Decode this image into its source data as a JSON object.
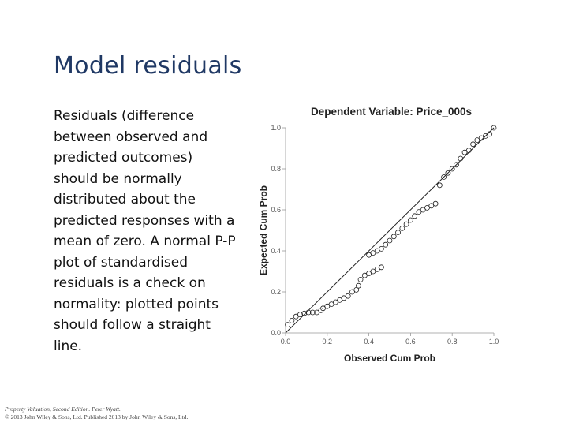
{
  "slide": {
    "title": "Model residuals",
    "body": "Residuals (difference between observed and predicted outcomes) should be normally distributed about the predicted responses with a mean of zero.  A normal P-P plot of standardised residuals is a check on normality: plotted points should follow a straight line."
  },
  "footer": {
    "line1": "Property Valuation, Second Edition. Peter Wyatt.",
    "line2": "© 2013 John Wiley & Sons, Ltd. Published 2013 by John Wiley & Sons, Ltd."
  },
  "chart_data": {
    "type": "scatter",
    "title": "Dependent Variable: Price_000s",
    "xlabel": "Observed Cum Prob",
    "ylabel": "Expected Cum Prob",
    "xlim": [
      0,
      1
    ],
    "ylim": [
      0,
      1
    ],
    "xticks": [
      "0.0",
      "0.2",
      "0.4",
      "0.6",
      "0.8",
      "1.0"
    ],
    "yticks": [
      "0.0",
      "0.2",
      "0.4",
      "0.6",
      "0.8",
      "1.0"
    ],
    "grid": false,
    "legend": "none",
    "reference_line": [
      [
        0,
        0
      ],
      [
        1,
        1
      ]
    ],
    "points": [
      [
        0.01,
        0.04
      ],
      [
        0.03,
        0.06
      ],
      [
        0.05,
        0.08
      ],
      [
        0.07,
        0.09
      ],
      [
        0.09,
        0.095
      ],
      [
        0.11,
        0.1
      ],
      [
        0.13,
        0.1
      ],
      [
        0.15,
        0.1
      ],
      [
        0.17,
        0.11
      ],
      [
        0.18,
        0.12
      ],
      [
        0.2,
        0.13
      ],
      [
        0.22,
        0.14
      ],
      [
        0.24,
        0.15
      ],
      [
        0.26,
        0.16
      ],
      [
        0.28,
        0.17
      ],
      [
        0.3,
        0.18
      ],
      [
        0.32,
        0.2
      ],
      [
        0.34,
        0.21
      ],
      [
        0.35,
        0.23
      ],
      [
        0.36,
        0.26
      ],
      [
        0.38,
        0.28
      ],
      [
        0.4,
        0.29
      ],
      [
        0.42,
        0.3
      ],
      [
        0.44,
        0.31
      ],
      [
        0.46,
        0.32
      ],
      [
        0.4,
        0.38
      ],
      [
        0.42,
        0.39
      ],
      [
        0.44,
        0.4
      ],
      [
        0.46,
        0.41
      ],
      [
        0.48,
        0.43
      ],
      [
        0.5,
        0.45
      ],
      [
        0.52,
        0.47
      ],
      [
        0.54,
        0.49
      ],
      [
        0.56,
        0.51
      ],
      [
        0.58,
        0.53
      ],
      [
        0.6,
        0.55
      ],
      [
        0.62,
        0.57
      ],
      [
        0.64,
        0.59
      ],
      [
        0.66,
        0.6
      ],
      [
        0.68,
        0.61
      ],
      [
        0.7,
        0.62
      ],
      [
        0.72,
        0.63
      ],
      [
        0.74,
        0.72
      ],
      [
        0.76,
        0.76
      ],
      [
        0.78,
        0.78
      ],
      [
        0.8,
        0.8
      ],
      [
        0.82,
        0.82
      ],
      [
        0.84,
        0.85
      ],
      [
        0.86,
        0.88
      ],
      [
        0.88,
        0.89
      ],
      [
        0.9,
        0.92
      ],
      [
        0.92,
        0.94
      ],
      [
        0.94,
        0.95
      ],
      [
        0.96,
        0.96
      ],
      [
        0.98,
        0.97
      ],
      [
        1.0,
        1.0
      ]
    ]
  }
}
